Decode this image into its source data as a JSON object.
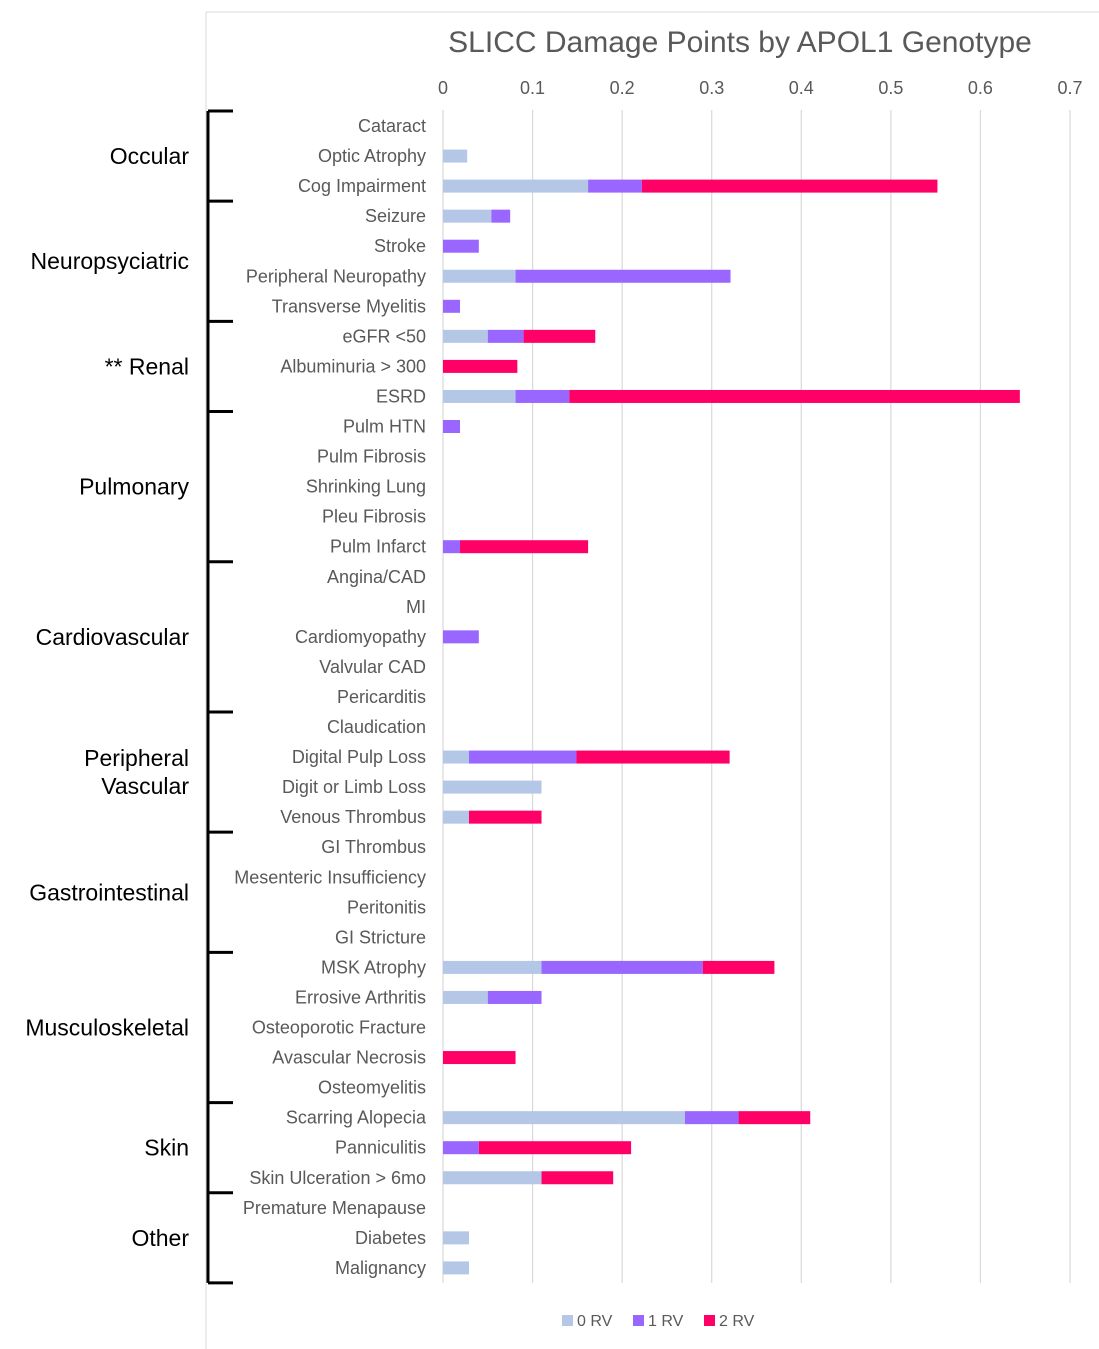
{
  "chart_data": {
    "type": "bar",
    "orientation": "horizontal",
    "stacked": true,
    "title": "SLICC Damage Points by APOL1 Genotype",
    "xlim": [
      0,
      0.7
    ],
    "x_ticks": [
      "0",
      "0.1",
      "0.2",
      "0.3",
      "0.4",
      "0.5",
      "0.6",
      "0.7"
    ],
    "grid": true,
    "legend_position": "bottom",
    "colors": {
      "0 RV": "#b4c7e7",
      "1 RV": "#9966ff",
      "2 RV": "#ff0066"
    },
    "categories": [
      "Cataract",
      "Optic Atrophy",
      "Cog Impairment",
      "Seizure",
      "Stroke",
      "Peripheral Neuropathy",
      "Transverse Myelitis",
      "eGFR <50",
      "Albuminuria > 300",
      "ESRD",
      "Pulm HTN",
      "Pulm Fibrosis",
      "Shrinking Lung",
      "Pleu Fibrosis",
      "Pulm Infarct",
      "Angina/CAD",
      "MI",
      "Cardiomyopathy",
      "Valvular CAD",
      "Pericarditis",
      "Claudication",
      "Digital Pulp Loss",
      "Digit or Limb Loss",
      "Venous Thrombus",
      "GI Thrombus",
      "Mesenteric Insufficiency",
      "Peritonitis",
      "GI Stricture",
      "MSK Atrophy",
      "Errosive Arthritis",
      "Osteoporotic Fracture",
      "Avascular Necrosis",
      "Osteomyelitis",
      "Scarring Alopecia",
      "Panniculitis",
      "Skin Ulceration > 6mo",
      "Premature Menapause",
      "Diabetes",
      "Malignancy"
    ],
    "series": [
      {
        "name": "0 RV",
        "values": [
          0,
          0.027,
          0.162,
          0.054,
          0,
          0.081,
          0,
          0.05,
          0,
          0.081,
          0,
          0,
          0,
          0,
          0,
          0,
          0,
          0,
          0,
          0,
          0,
          0.029,
          0.11,
          0.029,
          0,
          0,
          0,
          0,
          0.11,
          0.05,
          0,
          0,
          0,
          0.27,
          0,
          0.11,
          0,
          0.029,
          0.029
        ]
      },
      {
        "name": "1 RV",
        "values": [
          0,
          0,
          0.06,
          0.021,
          0.04,
          0.24,
          0.019,
          0.04,
          0,
          0.06,
          0.019,
          0,
          0,
          0,
          0.019,
          0,
          0,
          0.04,
          0,
          0,
          0,
          0.12,
          0,
          0,
          0,
          0,
          0,
          0,
          0.18,
          0.06,
          0,
          0,
          0,
          0.06,
          0.04,
          0,
          0,
          0,
          0
        ]
      },
      {
        "name": "2 RV",
        "values": [
          0,
          0,
          0.33,
          0,
          0,
          0,
          0,
          0.08,
          0.083,
          0.503,
          0,
          0,
          0,
          0,
          0.143,
          0,
          0,
          0,
          0,
          0,
          0,
          0.171,
          0,
          0.081,
          0,
          0,
          0,
          0,
          0.08,
          0,
          0,
          0.081,
          0,
          0.08,
          0.17,
          0.08,
          0,
          0,
          0
        ]
      }
    ],
    "groups": [
      {
        "label": [
          "Occular"
        ],
        "start": 0,
        "end": 2
      },
      {
        "label": [
          "Neuropsyciatric"
        ],
        "start": 3,
        "end": 6
      },
      {
        "label": [
          "** Renal"
        ],
        "start": 7,
        "end": 9
      },
      {
        "label": [
          "Pulmonary"
        ],
        "start": 10,
        "end": 14
      },
      {
        "label": [
          "Cardiovascular"
        ],
        "start": 15,
        "end": 19
      },
      {
        "label": [
          "Peripheral",
          "Vascular"
        ],
        "start": 20,
        "end": 23
      },
      {
        "label": [
          "Gastrointestinal"
        ],
        "start": 24,
        "end": 27
      },
      {
        "label": [
          "Musculoskeletal"
        ],
        "start": 28,
        "end": 32
      },
      {
        "label": [
          "Skin"
        ],
        "start": 33,
        "end": 35
      },
      {
        "label": [
          "Other"
        ],
        "start": 36,
        "end": 38
      }
    ]
  }
}
